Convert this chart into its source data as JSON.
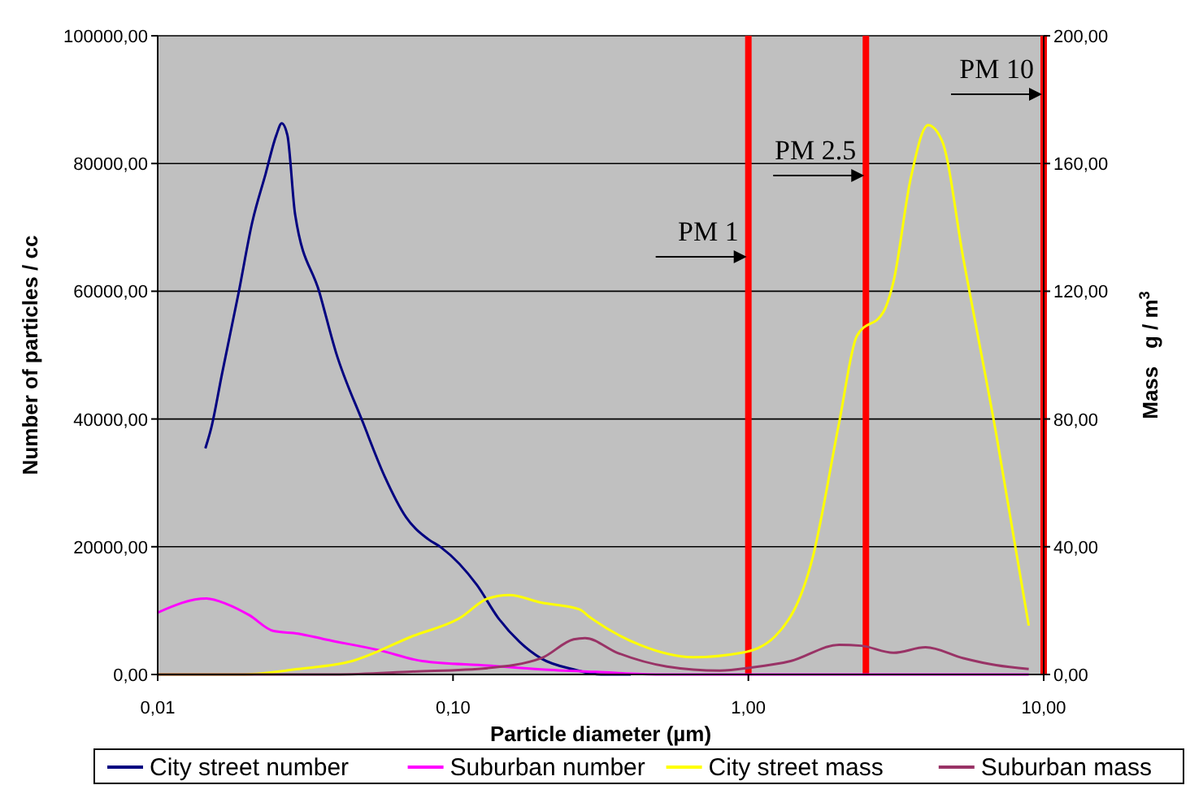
{
  "chart_data": {
    "type": "line",
    "xlabel": "Particle diameter (µm)",
    "ylabel": "Number of particles / cc",
    "y2label": "Mass   g / m$^{3}$",
    "log": "x",
    "xlim": [
      0.01,
      10
    ],
    "xticks": [
      {
        "value": 0.01,
        "label": "0,01"
      },
      {
        "value": 0.1,
        "label": "0,10"
      },
      {
        "value": 1,
        "label": "1,00"
      },
      {
        "value": 10,
        "label": "10,00"
      }
    ],
    "ylim": [
      0,
      100000
    ],
    "yticks": [
      {
        "value": 0,
        "label": "0,00"
      },
      {
        "value": 20000,
        "label": "20000,00"
      },
      {
        "value": 40000,
        "label": "40000,00"
      },
      {
        "value": 60000,
        "label": "60000,00"
      },
      {
        "value": 80000,
        "label": "80000,00"
      },
      {
        "value": 100000,
        "label": "100000,00"
      }
    ],
    "y2lim": [
      0,
      200
    ],
    "y2ticks": [
      {
        "value": 0,
        "label": "0,00"
      },
      {
        "value": 40,
        "label": "40,00"
      },
      {
        "value": 80,
        "label": "80,00"
      },
      {
        "value": 120,
        "label": "120,00"
      },
      {
        "value": 160,
        "label": "160,00"
      },
      {
        "value": 200,
        "label": "200,00"
      }
    ],
    "grid": "y",
    "legend": "bottom",
    "marker": "none",
    "line_style": "solid",
    "series": [
      {
        "name": "City street number",
        "color": "#000080",
        "x": [
          0.0145,
          0.0152,
          0.0165,
          0.0188,
          0.0209,
          0.0232,
          0.0252,
          0.0263,
          0.0275,
          0.0292,
          0.0353,
          0.0401,
          0.0496,
          0.0587,
          0.0694,
          0.0823,
          0.0911,
          0.1205,
          0.142,
          0.168,
          0.199,
          0.256,
          0.317,
          0.4
        ],
        "values": [
          35400,
          38700,
          47000,
          59800,
          70800,
          78400,
          84400,
          86300,
          84400,
          72000,
          59800,
          50500,
          39400,
          31000,
          24600,
          21200,
          19900,
          14000,
          8900,
          5100,
          2500,
          800,
          0,
          0
        ]
      },
      {
        "name": "Suburban number",
        "color": "#ff00ff",
        "x": [
          0.01,
          0.0146,
          0.0172,
          0.0204,
          0.0247,
          0.0299,
          0.0368,
          0.0563,
          0.0788,
          0.131,
          0.199,
          0.305,
          0.5,
          1,
          2,
          4,
          8.9
        ],
        "values": [
          9700,
          11900,
          11000,
          9300,
          6800,
          6400,
          5500,
          3800,
          2100,
          1400,
          800,
          400,
          0,
          0,
          0,
          0,
          0
        ]
      },
      {
        "name": "City street mass",
        "color": "#ffff00",
        "axis": "y2",
        "x": [
          0.01,
          0.0196,
          0.0299,
          0.0455,
          0.0725,
          0.106,
          0.131,
          0.155,
          0.199,
          0.268,
          0.29,
          0.428,
          0.65,
          0.95,
          1.23,
          1.65,
          2.03,
          2.33,
          2.87,
          3.1,
          3.54,
          4.06,
          4.53,
          5.35,
          6.9,
          8.9
        ],
        "values": [
          0,
          0,
          1.7,
          4.2,
          11.9,
          17.8,
          23.8,
          24.9,
          22.5,
          20.4,
          18,
          9.3,
          5.4,
          6.8,
          11.9,
          36.5,
          78.9,
          106,
          113.6,
          123,
          155,
          172,
          167,
          130,
          75.5,
          15.3
        ]
      },
      {
        "name": "Suburban mass",
        "color": "#993366",
        "axis": "y2",
        "x": [
          0.01,
          0.04,
          0.0725,
          0.131,
          0.199,
          0.256,
          0.28,
          0.36,
          0.53,
          0.8,
          1.03,
          1.39,
          2.03,
          2.41,
          3.1,
          3.98,
          5.35,
          6.9,
          8.9
        ],
        "values": [
          0,
          0,
          0.9,
          2,
          5.1,
          11,
          11.4,
          6.8,
          2.5,
          1.2,
          2.2,
          4.2,
          9.3,
          9,
          6.8,
          8.5,
          5.1,
          2.9,
          1.7
        ]
      }
    ],
    "ref_lines": [
      {
        "axis": "x",
        "value": 1,
        "label": "PM 1",
        "color": "#ff0000"
      },
      {
        "axis": "x",
        "value": 2.5,
        "label": "PM 2.5",
        "color": "#ff0000"
      },
      {
        "axis": "x",
        "value": 10,
        "label": "PM 10",
        "color": "#ff0000"
      }
    ]
  }
}
